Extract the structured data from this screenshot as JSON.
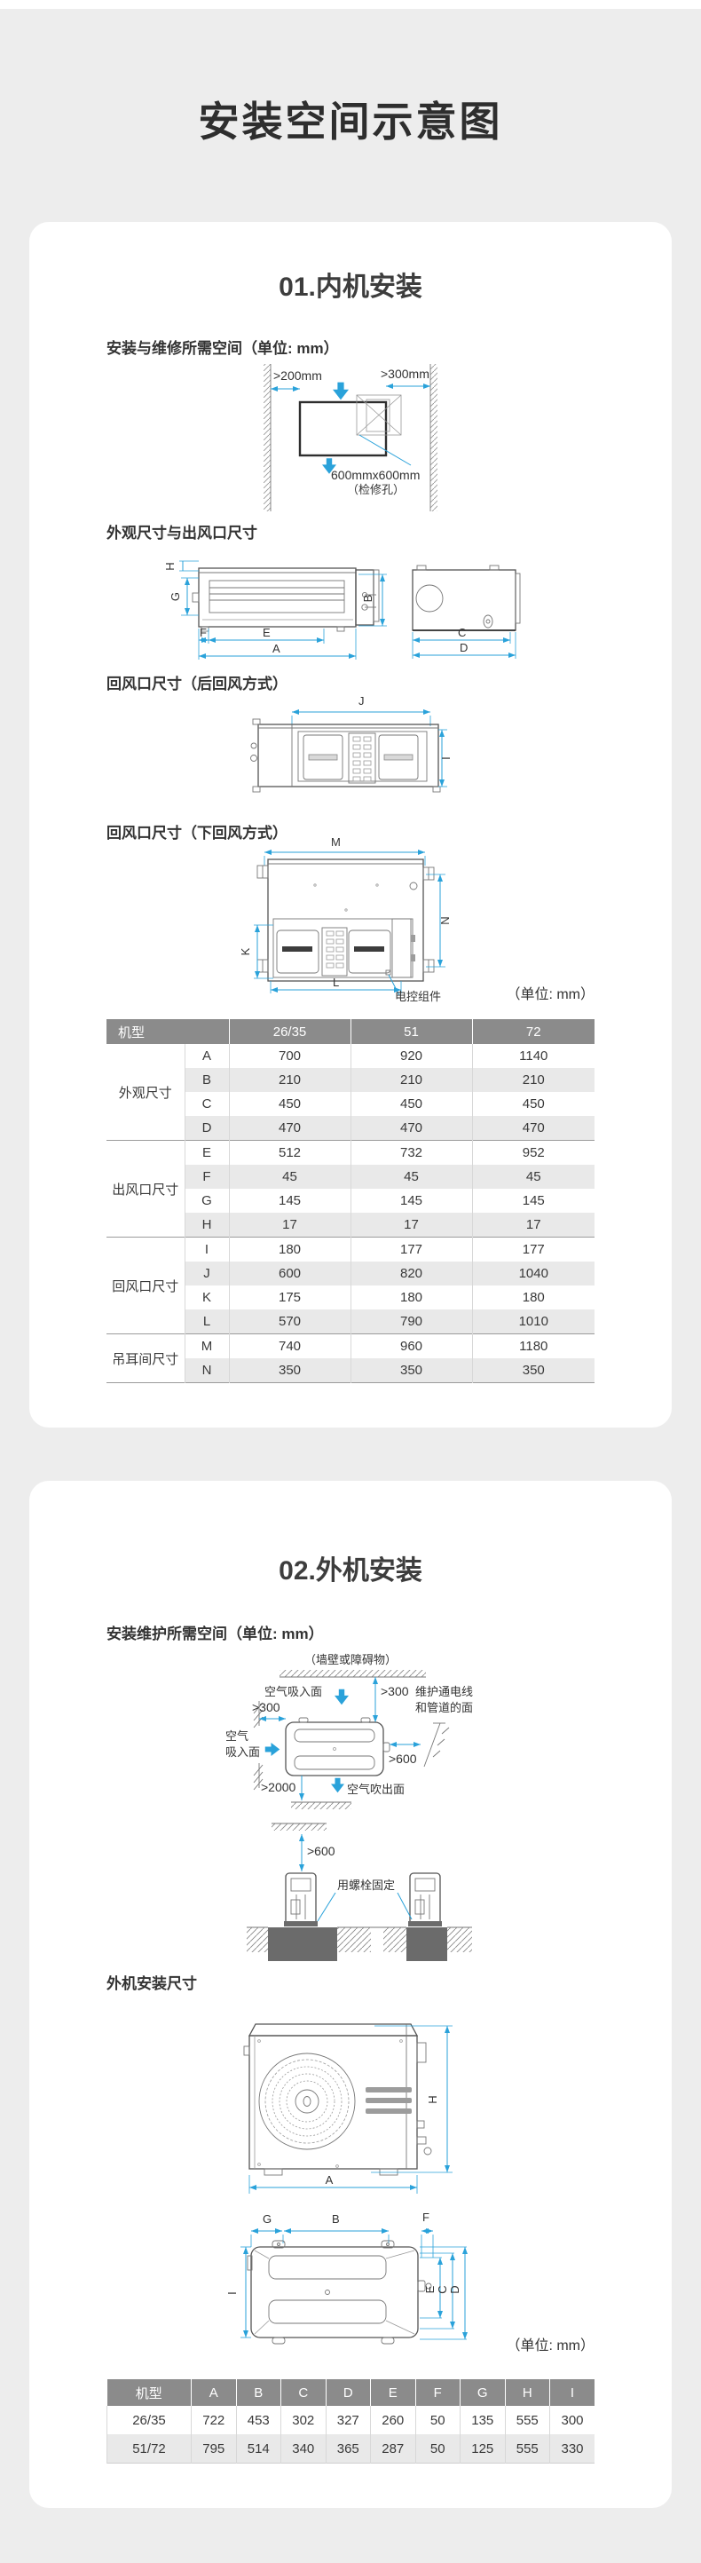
{
  "page": {
    "title": "安装空间示意图"
  },
  "units_note": "（单位: mm）",
  "letters": {
    "A": "A",
    "B": "B",
    "C": "C",
    "D": "D",
    "E": "E",
    "F": "F",
    "G": "G",
    "H": "H",
    "I": "I",
    "J": "J",
    "K": "K",
    "L": "L",
    "M": "M",
    "N": "N"
  },
  "indoor": {
    "title": "01.内机安装",
    "fig1": "安装与维修所需空间（单位: mm）",
    "fig2": "外观尺寸与出风口尺寸",
    "fig3": "回风口尺寸（后回风方式）",
    "fig4": "回风口尺寸（下回风方式）",
    "d1": {
      "left": ">200mm",
      "right": ">300mm",
      "hole": "600mmx600mm",
      "hole_sub": "（检修孔）"
    },
    "d4_note": "电控组件",
    "table": {
      "model_label": "机型",
      "columns": [
        "26/35",
        "51",
        "72"
      ],
      "groups": [
        {
          "name": "外观尺寸",
          "rows": [
            {
              "dim": "A",
              "values": [
                "700",
                "920",
                "1140"
              ]
            },
            {
              "dim": "B",
              "values": [
                "210",
                "210",
                "210"
              ]
            },
            {
              "dim": "C",
              "values": [
                "450",
                "450",
                "450"
              ]
            },
            {
              "dim": "D",
              "values": [
                "470",
                "470",
                "470"
              ]
            }
          ]
        },
        {
          "name": "出风口尺寸",
          "rows": [
            {
              "dim": "E",
              "values": [
                "512",
                "732",
                "952"
              ]
            },
            {
              "dim": "F",
              "values": [
                "45",
                "45",
                "45"
              ]
            },
            {
              "dim": "G",
              "values": [
                "145",
                "145",
                "145"
              ]
            },
            {
              "dim": "H",
              "values": [
                "17",
                "17",
                "17"
              ]
            }
          ]
        },
        {
          "name": "回风口尺寸",
          "rows": [
            {
              "dim": "I",
              "values": [
                "180",
                "177",
                "177"
              ]
            },
            {
              "dim": "J",
              "values": [
                "600",
                "820",
                "1040"
              ]
            },
            {
              "dim": "K",
              "values": [
                "175",
                "180",
                "180"
              ]
            },
            {
              "dim": "L",
              "values": [
                "570",
                "790",
                "1010"
              ]
            }
          ]
        },
        {
          "name": "吊耳间尺寸",
          "rows": [
            {
              "dim": "M",
              "values": [
                "740",
                "960",
                "1180"
              ]
            },
            {
              "dim": "N",
              "values": [
                "350",
                "350",
                "350"
              ]
            }
          ]
        }
      ]
    }
  },
  "outdoor": {
    "title": "02.外机安装",
    "fig1": "安装维护所需空间（单位: mm）",
    "fig2": "外机安装尺寸",
    "space": {
      "wall": "（墙壁或障碍物）",
      "intake_top": "空气吸入面",
      "intake_left_1": "空气",
      "intake_left_2": "吸入面",
      "gap_top": ">300",
      "gap_left": ">300",
      "gap_right": ">600",
      "gap_front": ">2000",
      "blow": "空气吹出面",
      "service_1": "维护通电线",
      "service_2": "和管道的面",
      "gap_below": ">600",
      "bolt": "用螺栓固定"
    },
    "table": {
      "header": [
        "机型",
        "A",
        "B",
        "C",
        "D",
        "E",
        "F",
        "G",
        "H",
        "I"
      ],
      "rows": [
        [
          "26/35",
          "722",
          "453",
          "302",
          "327",
          "260",
          "50",
          "135",
          "555",
          "300"
        ],
        [
          "51/72",
          "795",
          "514",
          "340",
          "365",
          "287",
          "50",
          "125",
          "555",
          "330"
        ]
      ]
    }
  }
}
